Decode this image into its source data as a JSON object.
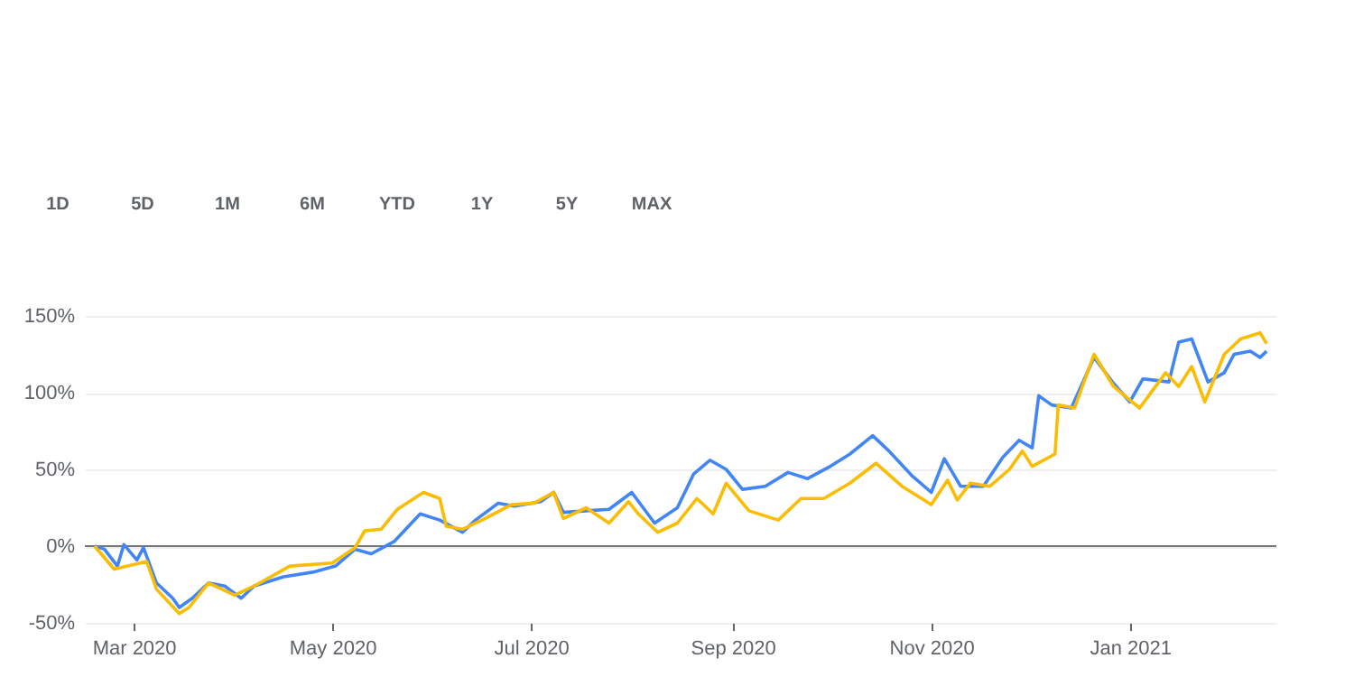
{
  "chart_data": {
    "type": "line",
    "x": [
      "2020-02-18",
      "2020-02-21",
      "2020-02-25",
      "2020-02-27",
      "2020-03-02",
      "2020-03-04",
      "2020-03-08",
      "2020-03-13",
      "2020-03-15",
      "2020-03-19",
      "2020-03-24",
      "2020-03-29",
      "2020-04-03",
      "2020-04-07",
      "2020-04-16",
      "2020-04-25",
      "2020-05-02",
      "2020-05-08",
      "2020-05-13",
      "2020-05-20",
      "2020-05-28",
      "2020-06-03",
      "2020-06-10",
      "2020-06-14",
      "2020-06-21",
      "2020-06-26",
      "2020-07-04",
      "2020-07-08",
      "2020-07-11",
      "2020-07-18",
      "2020-07-25",
      "2020-08-01",
      "2020-08-08",
      "2020-08-15",
      "2020-08-20",
      "2020-08-25",
      "2020-08-30",
      "2020-09-04",
      "2020-09-11",
      "2020-09-18",
      "2020-09-24",
      "2020-10-01",
      "2020-10-07",
      "2020-10-14",
      "2020-10-19",
      "2020-10-26",
      "2020-11-01",
      "2020-11-05",
      "2020-11-10",
      "2020-11-17",
      "2020-11-23",
      "2020-11-28",
      "2020-12-02",
      "2020-12-04",
      "2020-12-08",
      "2020-12-14",
      "2020-12-21",
      "2020-12-27",
      "2021-01-01",
      "2021-01-05",
      "2021-01-13",
      "2021-01-16",
      "2021-01-20",
      "2021-01-25",
      "2021-01-30",
      "2021-02-02",
      "2021-02-07",
      "2021-02-10",
      "2021-02-12"
    ],
    "series": [
      {
        "color": "#4285f4",
        "values": [
          0,
          -2,
          -13,
          1,
          -9,
          -1,
          -24,
          -34,
          -40,
          -34,
          -24,
          -26,
          -34,
          -26,
          -20,
          -17,
          -13,
          -2,
          -5,
          3,
          21,
          17,
          9,
          17,
          28,
          26,
          29,
          35,
          22,
          23,
          24,
          35,
          15,
          25,
          47,
          56,
          50,
          37,
          39,
          48,
          44,
          52,
          60,
          72,
          62,
          46,
          35,
          57,
          39,
          39,
          58,
          69,
          64,
          98,
          92,
          90,
          123,
          106,
          94,
          109,
          107,
          133,
          135,
          107,
          113,
          125,
          127,
          123,
          127
        ]
      },
      {
        "color": "#fbbc04",
        "x": [
          "2020-02-18",
          "2020-02-24",
          "2020-03-03",
          "2020-03-05",
          "2020-03-08",
          "2020-03-15",
          "2020-03-18",
          "2020-03-24",
          "2020-04-01",
          "2020-04-07",
          "2020-04-18",
          "2020-05-01",
          "2020-05-08",
          "2020-05-11",
          "2020-05-16",
          "2020-05-21",
          "2020-05-29",
          "2020-06-03",
          "2020-06-05",
          "2020-06-10",
          "2020-06-17",
          "2020-06-25",
          "2020-07-02",
          "2020-07-08",
          "2020-07-11",
          "2020-07-18",
          "2020-07-25",
          "2020-07-31",
          "2020-08-03",
          "2020-08-09",
          "2020-08-15",
          "2020-08-21",
          "2020-08-26",
          "2020-08-30",
          "2020-09-06",
          "2020-09-15",
          "2020-09-22",
          "2020-09-29",
          "2020-10-07",
          "2020-10-15",
          "2020-10-23",
          "2020-11-01",
          "2020-11-06",
          "2020-11-09",
          "2020-11-13",
          "2020-11-19",
          "2020-11-25",
          "2020-11-29",
          "2020-12-02",
          "2020-12-09",
          "2020-12-10",
          "2020-12-15",
          "2020-12-21",
          "2020-12-27",
          "2021-01-04",
          "2021-01-12",
          "2021-01-16",
          "2021-01-20",
          "2021-01-24",
          "2021-01-30",
          "2021-02-04",
          "2021-02-10",
          "2021-02-12"
        ],
        "values": [
          0,
          -15,
          -11,
          -10,
          -28,
          -44,
          -40,
          -24,
          -32,
          -26,
          -13,
          -11,
          -1,
          10,
          11,
          24,
          35,
          31,
          13,
          11,
          18,
          27,
          28,
          35,
          18,
          25,
          15,
          29,
          21,
          9,
          15,
          31,
          21,
          41,
          23,
          17,
          31,
          31,
          41,
          54,
          39,
          27,
          43,
          30,
          41,
          39,
          50,
          62,
          52,
          60,
          92,
          90,
          125,
          104,
          90,
          113,
          104,
          117,
          94,
          125,
          135,
          139,
          132
        ]
      }
    ],
    "xlim": [
      "2020-02-15",
      "2021-02-15"
    ],
    "xticks": [
      {
        "value": "2020-03-01",
        "label": "Mar 2020"
      },
      {
        "value": "2020-05-01",
        "label": "May 2020"
      },
      {
        "value": "2020-07-01",
        "label": "Jul 2020"
      },
      {
        "value": "2020-09-01",
        "label": "Sep 2020"
      },
      {
        "value": "2020-11-01",
        "label": "Nov 2020"
      },
      {
        "value": "2021-01-01",
        "label": "Jan 2021"
      }
    ],
    "ylim": [
      -50,
      150
    ],
    "yticks": [
      {
        "value": -50,
        "label": "-50%"
      },
      {
        "value": 0,
        "label": "0%"
      },
      {
        "value": 50,
        "label": "50%"
      },
      {
        "value": 100,
        "label": "100%"
      },
      {
        "value": 150,
        "label": "150%"
      }
    ],
    "grid": "y",
    "line_style": "solid",
    "ref_lines": [
      {
        "axis": "y",
        "value": 0,
        "color": "#757575"
      }
    ],
    "annotations": [
      "1D",
      "5D",
      "1M",
      "6M",
      "YTD",
      "1Y",
      "5Y",
      "MAX"
    ]
  }
}
